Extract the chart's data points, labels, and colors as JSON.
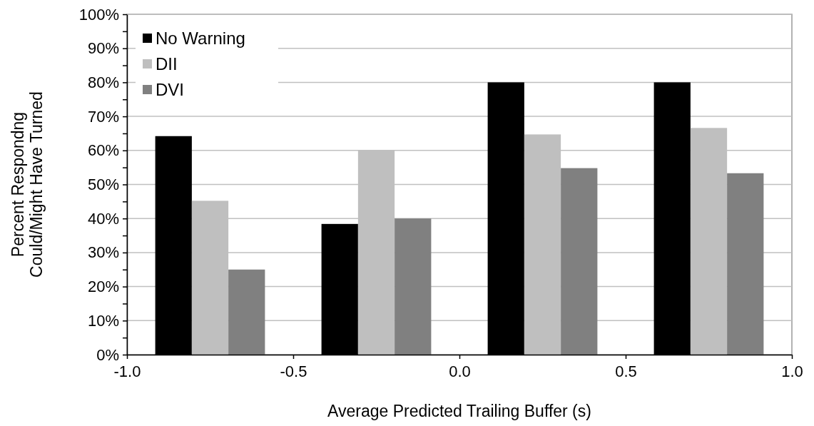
{
  "chart_data": {
    "type": "bar",
    "xlabel": "Average Predicted Trailing Buffer (s)",
    "ylabel": "Percent Respondng\nCould/Might Have Turned",
    "x": [
      -0.75,
      -0.25,
      0.25,
      0.75
    ],
    "series": [
      {
        "name": "No Warning",
        "color": "#000000",
        "values": [
          64.2,
          38.4,
          80,
          80
        ]
      },
      {
        "name": "DII",
        "color": "#bfbfbf",
        "values": [
          45.2,
          60,
          64.7,
          66.6
        ]
      },
      {
        "name": "DVI",
        "color": "#808080",
        "values": [
          25,
          40,
          54.8,
          53.3
        ]
      }
    ],
    "xlim": [
      -1,
      1
    ],
    "xticks": [
      {
        "value": -1,
        "label": "-1.0"
      },
      {
        "value": -0.5,
        "label": "-0.5"
      },
      {
        "value": 0,
        "label": "0.0"
      },
      {
        "value": 0.5,
        "label": "0.5"
      },
      {
        "value": 1,
        "label": "1.0"
      }
    ],
    "ylim": [
      0,
      100
    ],
    "yticks": [
      {
        "value": 0,
        "label": "0%"
      },
      {
        "value": 5,
        "label": null
      },
      {
        "value": 10,
        "label": "10%"
      },
      {
        "value": 15,
        "label": null
      },
      {
        "value": 20,
        "label": "20%"
      },
      {
        "value": 25,
        "label": null
      },
      {
        "value": 30,
        "label": "30%"
      },
      {
        "value": 35,
        "label": null
      },
      {
        "value": 40,
        "label": "40%"
      },
      {
        "value": 45,
        "label": null
      },
      {
        "value": 50,
        "label": "50%"
      },
      {
        "value": 55,
        "label": null
      },
      {
        "value": 60,
        "label": "60%"
      },
      {
        "value": 65,
        "label": null
      },
      {
        "value": 70,
        "label": "70%"
      },
      {
        "value": 75,
        "label": null
      },
      {
        "value": 80,
        "label": "80%"
      },
      {
        "value": 85,
        "label": null
      },
      {
        "value": 90,
        "label": "90%"
      },
      {
        "value": 95,
        "label": null
      },
      {
        "value": 100,
        "label": "100%"
      }
    ],
    "grid": "y",
    "legend": "top left"
  }
}
